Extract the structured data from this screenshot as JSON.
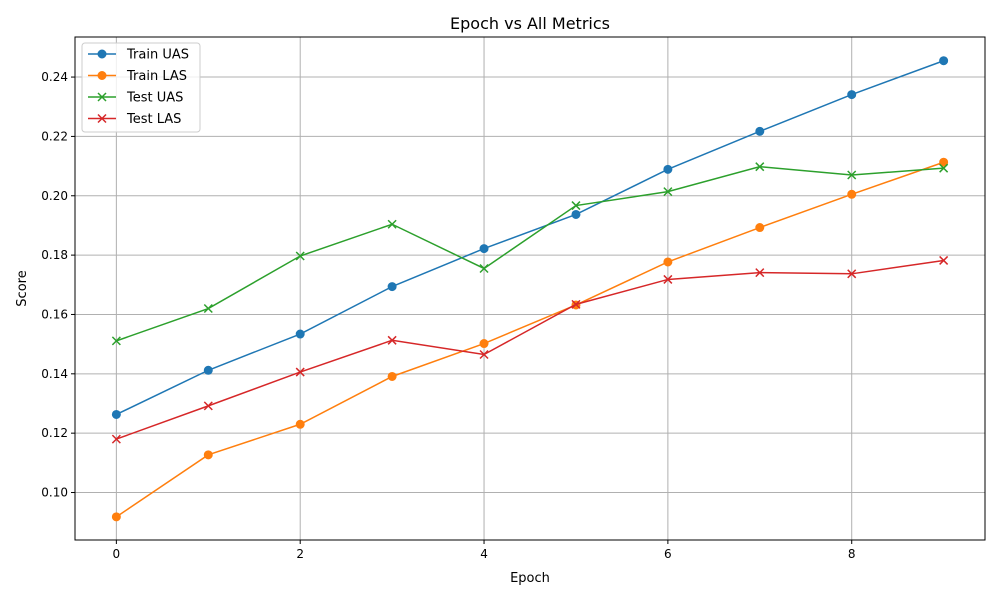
{
  "chart_data": {
    "type": "line",
    "title": "Epoch vs All Metrics",
    "xlabel": "Epoch",
    "ylabel": "Score",
    "x": [
      0,
      1,
      2,
      3,
      4,
      5,
      6,
      7,
      8,
      9
    ],
    "xlim": [
      -0.45,
      9.45
    ],
    "ylim": [
      0.084,
      0.2535
    ],
    "xticks": [
      0,
      2,
      4,
      6,
      8
    ],
    "xtick_labels": [
      "0",
      "2",
      "4",
      "6",
      "8"
    ],
    "yticks": [
      0.1,
      0.12,
      0.14,
      0.16,
      0.18,
      0.2,
      0.22,
      0.24
    ],
    "ytick_labels": [
      "0.10",
      "0.12",
      "0.14",
      "0.16",
      "0.18",
      "0.20",
      "0.22",
      "0.24"
    ],
    "grid": true,
    "legend_position": "top-left",
    "series": [
      {
        "name": "Train UAS",
        "color": "#1f77b4",
        "marker": "circle",
        "values": [
          0.1263,
          0.1412,
          0.1534,
          0.1694,
          0.1822,
          0.1937,
          0.2089,
          0.2217,
          0.2341,
          0.2455
        ]
      },
      {
        "name": "Train LAS",
        "color": "#ff7f0e",
        "marker": "circle",
        "values": [
          0.0918,
          0.1127,
          0.123,
          0.1391,
          0.1502,
          0.1632,
          0.1777,
          0.1893,
          0.2005,
          0.2113
        ]
      },
      {
        "name": "Test UAS",
        "color": "#2ca02c",
        "marker": "x",
        "values": [
          0.1511,
          0.162,
          0.1797,
          0.1904,
          0.1755,
          0.1967,
          0.2014,
          0.2098,
          0.207,
          0.2093
        ]
      },
      {
        "name": "Test LAS",
        "color": "#d62728",
        "marker": "x",
        "values": [
          0.118,
          0.1292,
          0.1406,
          0.1513,
          0.1465,
          0.1634,
          0.1718,
          0.1741,
          0.1737,
          0.1782
        ]
      }
    ]
  }
}
